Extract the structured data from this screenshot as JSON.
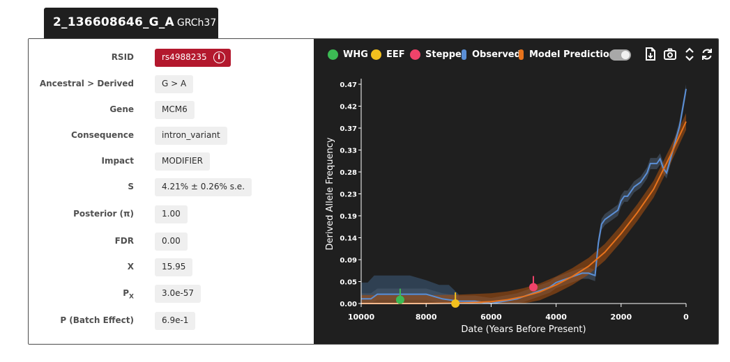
{
  "header": {
    "variant": "2_136608646_G_A",
    "build": "GRCh37"
  },
  "fields": {
    "rsid": {
      "label": "RSID",
      "value": "rs4988235"
    },
    "ancestral_derived": {
      "label": "Ancestral > Derived",
      "value": "G > A"
    },
    "gene": {
      "label": "Gene",
      "value": "MCM6"
    },
    "consequence": {
      "label": "Consequence",
      "value": "intron_variant"
    },
    "impact": {
      "label": "Impact",
      "value": "MODIFIER"
    },
    "s": {
      "label": "S",
      "value": "4.21% ± 0.26% s.e."
    },
    "posterior": {
      "label": "Posterior (π)",
      "value": "1.00"
    },
    "fdr": {
      "label": "FDR",
      "value": "0.00"
    },
    "x": {
      "label": "X",
      "value": "15.95"
    },
    "px": {
      "label_main": "P",
      "label_sub": "X",
      "value": "3.0e-57"
    },
    "p_batch": {
      "label": "P (Batch Effect)",
      "value": "6.9e-1"
    }
  },
  "legend": {
    "whg": "WHG",
    "eef": "EEF",
    "steppe": "Steppe",
    "observed": "Observed",
    "model": "Model Prediction"
  },
  "colors": {
    "whg": "#3cba54",
    "eef": "#f2c01e",
    "steppe": "#f0436a",
    "observed": "#5b8fd6",
    "model": "#e8731c",
    "rsid_badge": "#b3182d",
    "panel_bg": "#1f1f1f"
  },
  "toolbar": {
    "toggle_state": "on",
    "icons": [
      "download-icon",
      "camera-icon",
      "expand-icon",
      "refresh-icon"
    ]
  },
  "chart_data": {
    "type": "line",
    "xlabel": "Date (Years Before Present)",
    "ylabel": "Derived Allele Frequency",
    "xlim": [
      10000,
      0
    ],
    "ylim": [
      0,
      0.47
    ],
    "x_ticks": [
      10000,
      8000,
      6000,
      4000,
      2000,
      0
    ],
    "y_ticks": [
      "0.00",
      "0.05",
      "0.09",
      "0.14",
      "0.19",
      "0.23",
      "0.28",
      "0.33",
      "0.37",
      "0.42",
      "0.47"
    ],
    "y_tick_values": [
      0,
      0.047,
      0.094,
      0.141,
      0.188,
      0.235,
      0.282,
      0.329,
      0.376,
      0.423,
      0.47
    ],
    "series": [
      {
        "name": "Observed",
        "x": [
          10000,
          9700,
          9500,
          9000,
          8500,
          8000,
          7500,
          7000,
          6500,
          6000,
          5600,
          5200,
          5000,
          4800,
          4600,
          4400,
          4200,
          4000,
          3800,
          3600,
          3400,
          3200,
          3000,
          2800,
          2700,
          2600,
          2500,
          2300,
          2100,
          2000,
          1900,
          1800,
          1600,
          1400,
          1200,
          1100,
          1000,
          900,
          800,
          700,
          600,
          400,
          200,
          0
        ],
        "y": [
          0.01,
          0.01,
          0.02,
          0.02,
          0.02,
          0.02,
          0.01,
          0.005,
          0.005,
          0.0,
          0.005,
          0.01,
          0.015,
          0.02,
          0.025,
          0.03,
          0.035,
          0.045,
          0.05,
          0.055,
          0.06,
          0.065,
          0.065,
          0.06,
          0.13,
          0.17,
          0.18,
          0.19,
          0.2,
          0.22,
          0.23,
          0.23,
          0.25,
          0.26,
          0.28,
          0.3,
          0.3,
          0.3,
          0.31,
          0.29,
          0.28,
          0.33,
          0.38,
          0.46
        ],
        "band": 0.012
      },
      {
        "name": "Model Prediction",
        "x": [
          10000,
          9000,
          8000,
          7000,
          6000,
          5500,
          5000,
          4500,
          4000,
          3500,
          3000,
          2500,
          2000,
          1500,
          1000,
          500,
          0
        ],
        "y": [
          0.0,
          0.0,
          0.0,
          0.001,
          0.004,
          0.008,
          0.015,
          0.025,
          0.04,
          0.058,
          0.08,
          0.11,
          0.15,
          0.195,
          0.245,
          0.315,
          0.39
        ],
        "band": 0.018
      }
    ],
    "uncertainty_early": {
      "x": [
        10000,
        9800,
        9600,
        9000,
        8500,
        8000,
        7600,
        7300,
        7000
      ],
      "upper": [
        0.045,
        0.045,
        0.06,
        0.06,
        0.06,
        0.05,
        0.04,
        0.04,
        0.02
      ]
    },
    "ancient_markers": [
      {
        "name": "WHG",
        "x": 8800,
        "y": 0.008
      },
      {
        "name": "EEF",
        "x": 7100,
        "y": 0.0
      },
      {
        "name": "Steppe",
        "x": 4700,
        "y": 0.035
      }
    ]
  }
}
